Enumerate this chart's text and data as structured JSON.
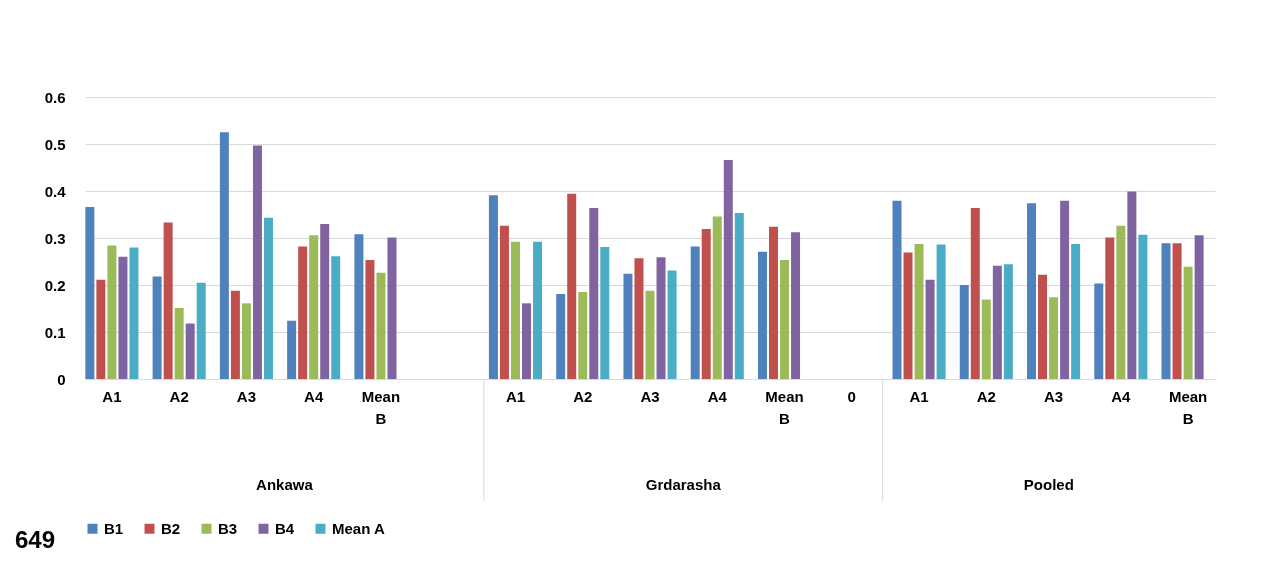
{
  "chart_data": {
    "type": "bar",
    "categories": [
      "A1",
      "A2",
      "A3",
      "A4",
      "Mean B",
      null,
      "A1",
      "A2",
      "A3",
      "A4",
      "Mean B",
      "0",
      "A1",
      "A2",
      "A3",
      "A4",
      "Mean B"
    ],
    "series": [
      {
        "name": "B1",
        "color": "#4f81bd",
        "values": [
          0.366,
          0.218,
          0.525,
          0.124,
          0.308,
          null,
          0.391,
          0.181,
          0.224,
          0.282,
          0.271,
          null,
          0.379,
          0.2,
          0.374,
          0.203,
          0.289
        ]
      },
      {
        "name": "B2",
        "color": "#c0504d",
        "values": [
          0.211,
          0.333,
          0.188,
          0.282,
          0.253,
          null,
          0.326,
          0.394,
          0.257,
          0.319,
          0.324,
          null,
          0.269,
          0.364,
          0.222,
          0.301,
          0.289
        ]
      },
      {
        "name": "B3",
        "color": "#9bbb59",
        "values": [
          0.284,
          0.151,
          0.161,
          0.306,
          0.226,
          null,
          0.292,
          0.185,
          0.188,
          0.346,
          0.253,
          null,
          0.287,
          0.169,
          0.174,
          0.326,
          0.239
        ]
      },
      {
        "name": "B4",
        "color": "#8064a2",
        "values": [
          0.26,
          0.118,
          0.497,
          0.33,
          0.301,
          null,
          0.161,
          0.364,
          0.259,
          0.466,
          0.312,
          null,
          0.211,
          0.241,
          0.379,
          0.399,
          0.306
        ]
      },
      {
        "name": "Mean A",
        "color": "#4bacc6",
        "values": [
          0.28,
          0.205,
          0.343,
          0.261,
          null,
          null,
          0.292,
          0.281,
          0.231,
          0.353,
          null,
          null,
          0.286,
          0.244,
          0.287,
          0.307,
          null
        ]
      }
    ],
    "ylim": [
      0,
      0.6
    ],
    "yticks": [
      0,
      0.1,
      0.2,
      0.3,
      0.4,
      0.5,
      0.6
    ],
    "grid": "y",
    "legend": "bottom",
    "annotations": [
      "Ankawa",
      "Grdarasha",
      "Pooled",
      "649"
    ]
  }
}
